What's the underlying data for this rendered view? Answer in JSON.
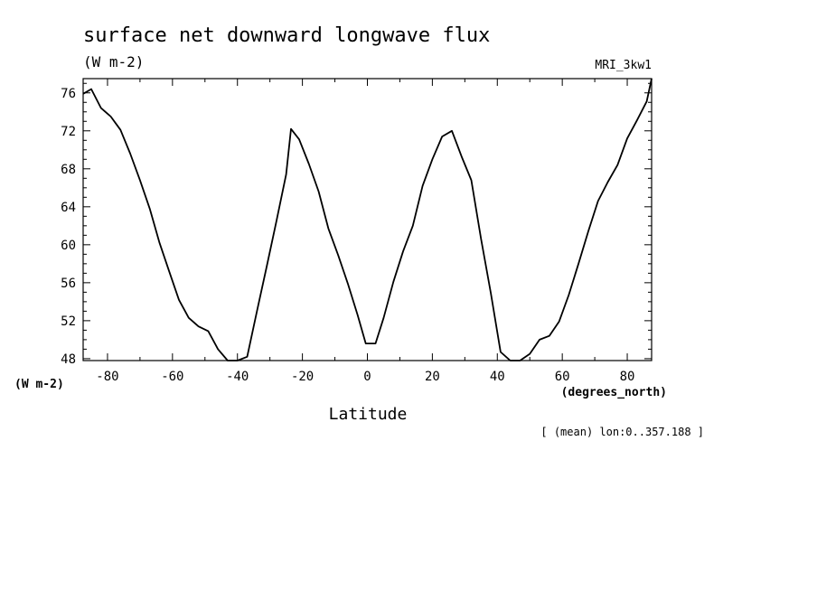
{
  "chart_data": {
    "type": "line",
    "title": "surface net downward longwave flux",
    "units": "(W m-2)",
    "model": "MRI_3kw1",
    "ylabel": "(W m-2)",
    "xlabel": "Latitude",
    "xunits": "(degrees_north)",
    "note": "[ (mean) lon:0..357.188 ]",
    "xlim": [
      -87.5,
      87.5
    ],
    "ylim": [
      47.8,
      77.5
    ],
    "xticks": [
      -80,
      -60,
      -40,
      -20,
      0,
      20,
      40,
      60,
      80
    ],
    "yticks": [
      48,
      52,
      56,
      60,
      64,
      68,
      72,
      76
    ],
    "xtick_labels": [
      "-80",
      "-60",
      "-40",
      "-20",
      "0",
      "20",
      "40",
      "60",
      "80"
    ],
    "ytick_labels": [
      "48",
      "52",
      "56",
      "60",
      "64",
      "68",
      "72",
      "76"
    ],
    "grid": false,
    "series": [
      {
        "color": "#000000",
        "x": [
          -87.5,
          -85,
          -82,
          -79,
          -76,
          -73,
          -70,
          -67,
          -64,
          -61,
          -58,
          -55,
          -52,
          -49,
          -46,
          -43,
          -40,
          -37,
          -34,
          -31,
          -28,
          -25,
          -23.5,
          -21,
          -18,
          -15,
          -12,
          -9,
          -6,
          -3,
          -0.5,
          2.5,
          5,
          8,
          11,
          14,
          17,
          20,
          23,
          26,
          29,
          32,
          35,
          38,
          41,
          44,
          47,
          50,
          53,
          56,
          59,
          62,
          65,
          68,
          71,
          74,
          77,
          80,
          83,
          86,
          87.5
        ],
        "y": [
          75.9,
          76.4,
          74.4,
          73.5,
          72.1,
          69.6,
          66.8,
          63.8,
          60.2,
          57.2,
          54.2,
          52.3,
          51.4,
          50.9,
          49.0,
          47.8,
          47.8,
          48.2,
          53.0,
          57.7,
          62.5,
          67.4,
          72.2,
          71.1,
          68.5,
          65.6,
          61.7,
          58.9,
          55.9,
          52.6,
          49.6,
          49.6,
          52.3,
          56.1,
          59.3,
          62.0,
          66.2,
          69.0,
          71.4,
          72.0,
          69.3,
          66.8,
          60.6,
          54.9,
          48.7,
          47.8,
          47.8,
          48.5,
          50.0,
          50.4,
          51.9,
          54.7,
          58.0,
          61.4,
          64.6,
          66.6,
          68.4,
          71.2,
          73.1,
          75.1,
          77.5
        ]
      }
    ]
  }
}
